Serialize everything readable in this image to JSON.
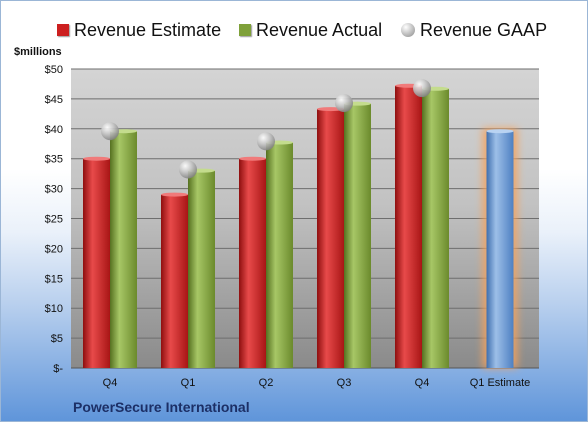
{
  "legend": {
    "estimate": "Revenue Estimate",
    "actual": "Revenue Actual",
    "gaap": "Revenue GAAP"
  },
  "unit_label": "$millions",
  "company": "PowerSecure International",
  "colors": {
    "estimate": "#cc1f1f",
    "actual": "#7fa13a",
    "gaap": "#b3b3b3",
    "forecast": "#6e9bd6",
    "forecast_glow": "#f7a35c"
  },
  "chart_data": {
    "type": "bar",
    "categories": [
      "Q4",
      "Q1",
      "Q2",
      "Q3",
      "Q4",
      "Q1 Estimate"
    ],
    "series": [
      {
        "name": "Revenue Estimate",
        "values": [
          35,
          29,
          35,
          43.3,
          47.2,
          null
        ]
      },
      {
        "name": "Revenue Actual",
        "values": [
          39.6,
          33,
          37.7,
          44.2,
          46.7,
          39.6
        ]
      },
      {
        "name": "Revenue GAAP",
        "values": [
          39.6,
          33.2,
          37.9,
          44.3,
          46.8,
          null
        ]
      }
    ],
    "ylim": [
      0,
      50
    ],
    "yticks": [
      "$-",
      "$5",
      "$10",
      "$15",
      "$20",
      "$25",
      "$30",
      "$35",
      "$40",
      "$45",
      "$50"
    ],
    "ylabel": "$millions",
    "grid": true,
    "legend_position": "top"
  }
}
